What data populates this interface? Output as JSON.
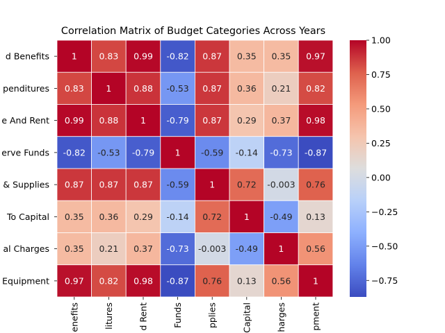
{
  "chart_data": {
    "type": "heatmap",
    "title": "Correlation Matrix of Budget Categories Across Years",
    "xlabel": "",
    "ylabel": "",
    "row_labels": [
      "d Benefits",
      "penditures",
      "e And Rent",
      "erve Funds",
      "& Supplies",
      "To Capital",
      "al Charges",
      "Equipment"
    ],
    "col_labels": [
      "enefits",
      "litures",
      "d Rent",
      "Funds",
      "pplies",
      "Capital",
      "harges",
      "pment"
    ],
    "values": [
      [
        1,
        0.83,
        0.99,
        -0.82,
        0.87,
        0.35,
        0.35,
        0.97
      ],
      [
        0.83,
        1,
        0.88,
        -0.53,
        0.87,
        0.36,
        0.21,
        0.82
      ],
      [
        0.99,
        0.88,
        1,
        -0.79,
        0.87,
        0.29,
        0.37,
        0.98
      ],
      [
        -0.82,
        -0.53,
        -0.79,
        1,
        -0.59,
        -0.14,
        -0.73,
        -0.87
      ],
      [
        0.87,
        0.87,
        0.87,
        -0.59,
        1,
        0.72,
        -0.003,
        0.76
      ],
      [
        0.35,
        0.36,
        0.29,
        -0.14,
        0.72,
        1,
        -0.49,
        0.13
      ],
      [
        0.35,
        0.21,
        0.37,
        -0.73,
        -0.003,
        -0.49,
        1,
        0.56
      ],
      [
        0.97,
        0.82,
        0.98,
        -0.87,
        0.76,
        0.13,
        0.56,
        1
      ]
    ],
    "colormap": "coolwarm",
    "vmin": -0.87,
    "vmax": 1,
    "colorbar_ticks": [
      "1.00",
      "0.75",
      "0.50",
      "0.25",
      "0.00",
      "−0.25",
      "−0.50",
      "−0.75"
    ],
    "colorbar_tick_values": [
      1,
      0.75,
      0.5,
      0.25,
      0,
      -0.25,
      -0.5,
      -0.75
    ],
    "grid": true
  }
}
